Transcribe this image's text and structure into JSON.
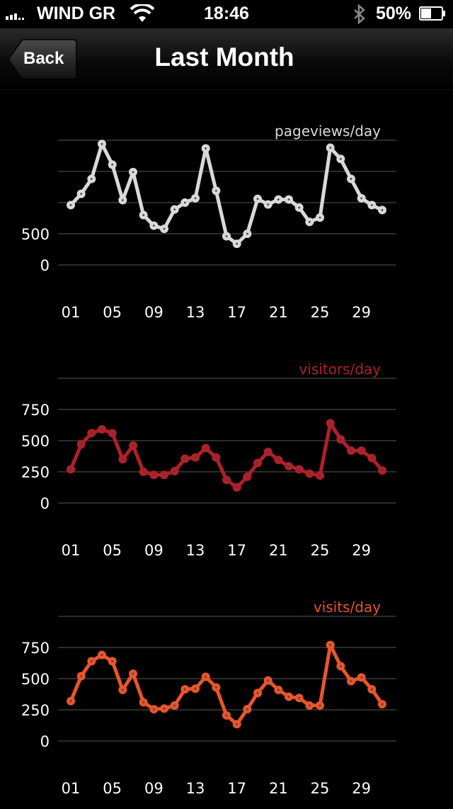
{
  "status_bar": {
    "carrier": "WIND GR",
    "time": "18:46",
    "battery": "50%",
    "battery_level": 0.5,
    "icons": [
      "signal-icon",
      "wifi-icon",
      "bluetooth-icon",
      "battery-icon"
    ]
  },
  "nav": {
    "back_label": "Back",
    "title": "Last Month"
  },
  "chart_data": [
    {
      "type": "line",
      "title": "pageviews/day",
      "color": "#d9d9d9",
      "yticks": [
        "500",
        "0"
      ],
      "ylim": [
        0,
        2000
      ],
      "xtick_labels": [
        "01",
        "05",
        "09",
        "13",
        "17",
        "21",
        "25",
        "29"
      ],
      "x": [
        1,
        2,
        3,
        4,
        5,
        6,
        7,
        8,
        9,
        10,
        11,
        12,
        13,
        14,
        15,
        16,
        17,
        18,
        19,
        20,
        21,
        22,
        23,
        24,
        25,
        26,
        27,
        28,
        29,
        30,
        31
      ],
      "values": [
        960,
        1140,
        1380,
        1940,
        1610,
        1040,
        1490,
        800,
        630,
        580,
        890,
        1000,
        1070,
        1870,
        1190,
        460,
        340,
        500,
        1060,
        970,
        1050,
        1050,
        920,
        690,
        760,
        1880,
        1700,
        1380,
        1070,
        960,
        880
      ]
    },
    {
      "type": "line",
      "title": "visitors/day",
      "color": "#b0202a",
      "yticks": [
        "750",
        "500",
        "250",
        "0"
      ],
      "ylim": [
        0,
        1000
      ],
      "xtick_labels": [
        "01",
        "05",
        "09",
        "13",
        "17",
        "21",
        "25",
        "29"
      ],
      "x": [
        1,
        2,
        3,
        4,
        5,
        6,
        7,
        8,
        9,
        10,
        11,
        12,
        13,
        14,
        15,
        16,
        17,
        18,
        19,
        20,
        21,
        22,
        23,
        24,
        25,
        26,
        27,
        28,
        29,
        30,
        31
      ],
      "values": [
        270,
        470,
        560,
        590,
        560,
        350,
        460,
        250,
        225,
        225,
        255,
        355,
        365,
        440,
        365,
        185,
        125,
        210,
        320,
        410,
        345,
        295,
        270,
        235,
        220,
        640,
        510,
        420,
        420,
        360,
        260
      ]
    },
    {
      "type": "line",
      "title": "visits/day",
      "color": "#e8552c",
      "yticks": [
        "750",
        "500",
        "250",
        "0"
      ],
      "ylim": [
        0,
        1000
      ],
      "xtick_labels": [
        "01",
        "05",
        "09",
        "13",
        "17",
        "21",
        "25",
        "29"
      ],
      "x": [
        1,
        2,
        3,
        4,
        5,
        6,
        7,
        8,
        9,
        10,
        11,
        12,
        13,
        14,
        15,
        16,
        17,
        18,
        19,
        20,
        21,
        22,
        23,
        24,
        25,
        26,
        27,
        28,
        29,
        30,
        31
      ],
      "values": [
        320,
        520,
        640,
        690,
        640,
        410,
        540,
        310,
        255,
        260,
        285,
        415,
        420,
        515,
        430,
        205,
        135,
        255,
        385,
        485,
        410,
        355,
        345,
        285,
        285,
        770,
        600,
        480,
        510,
        415,
        295
      ]
    }
  ]
}
